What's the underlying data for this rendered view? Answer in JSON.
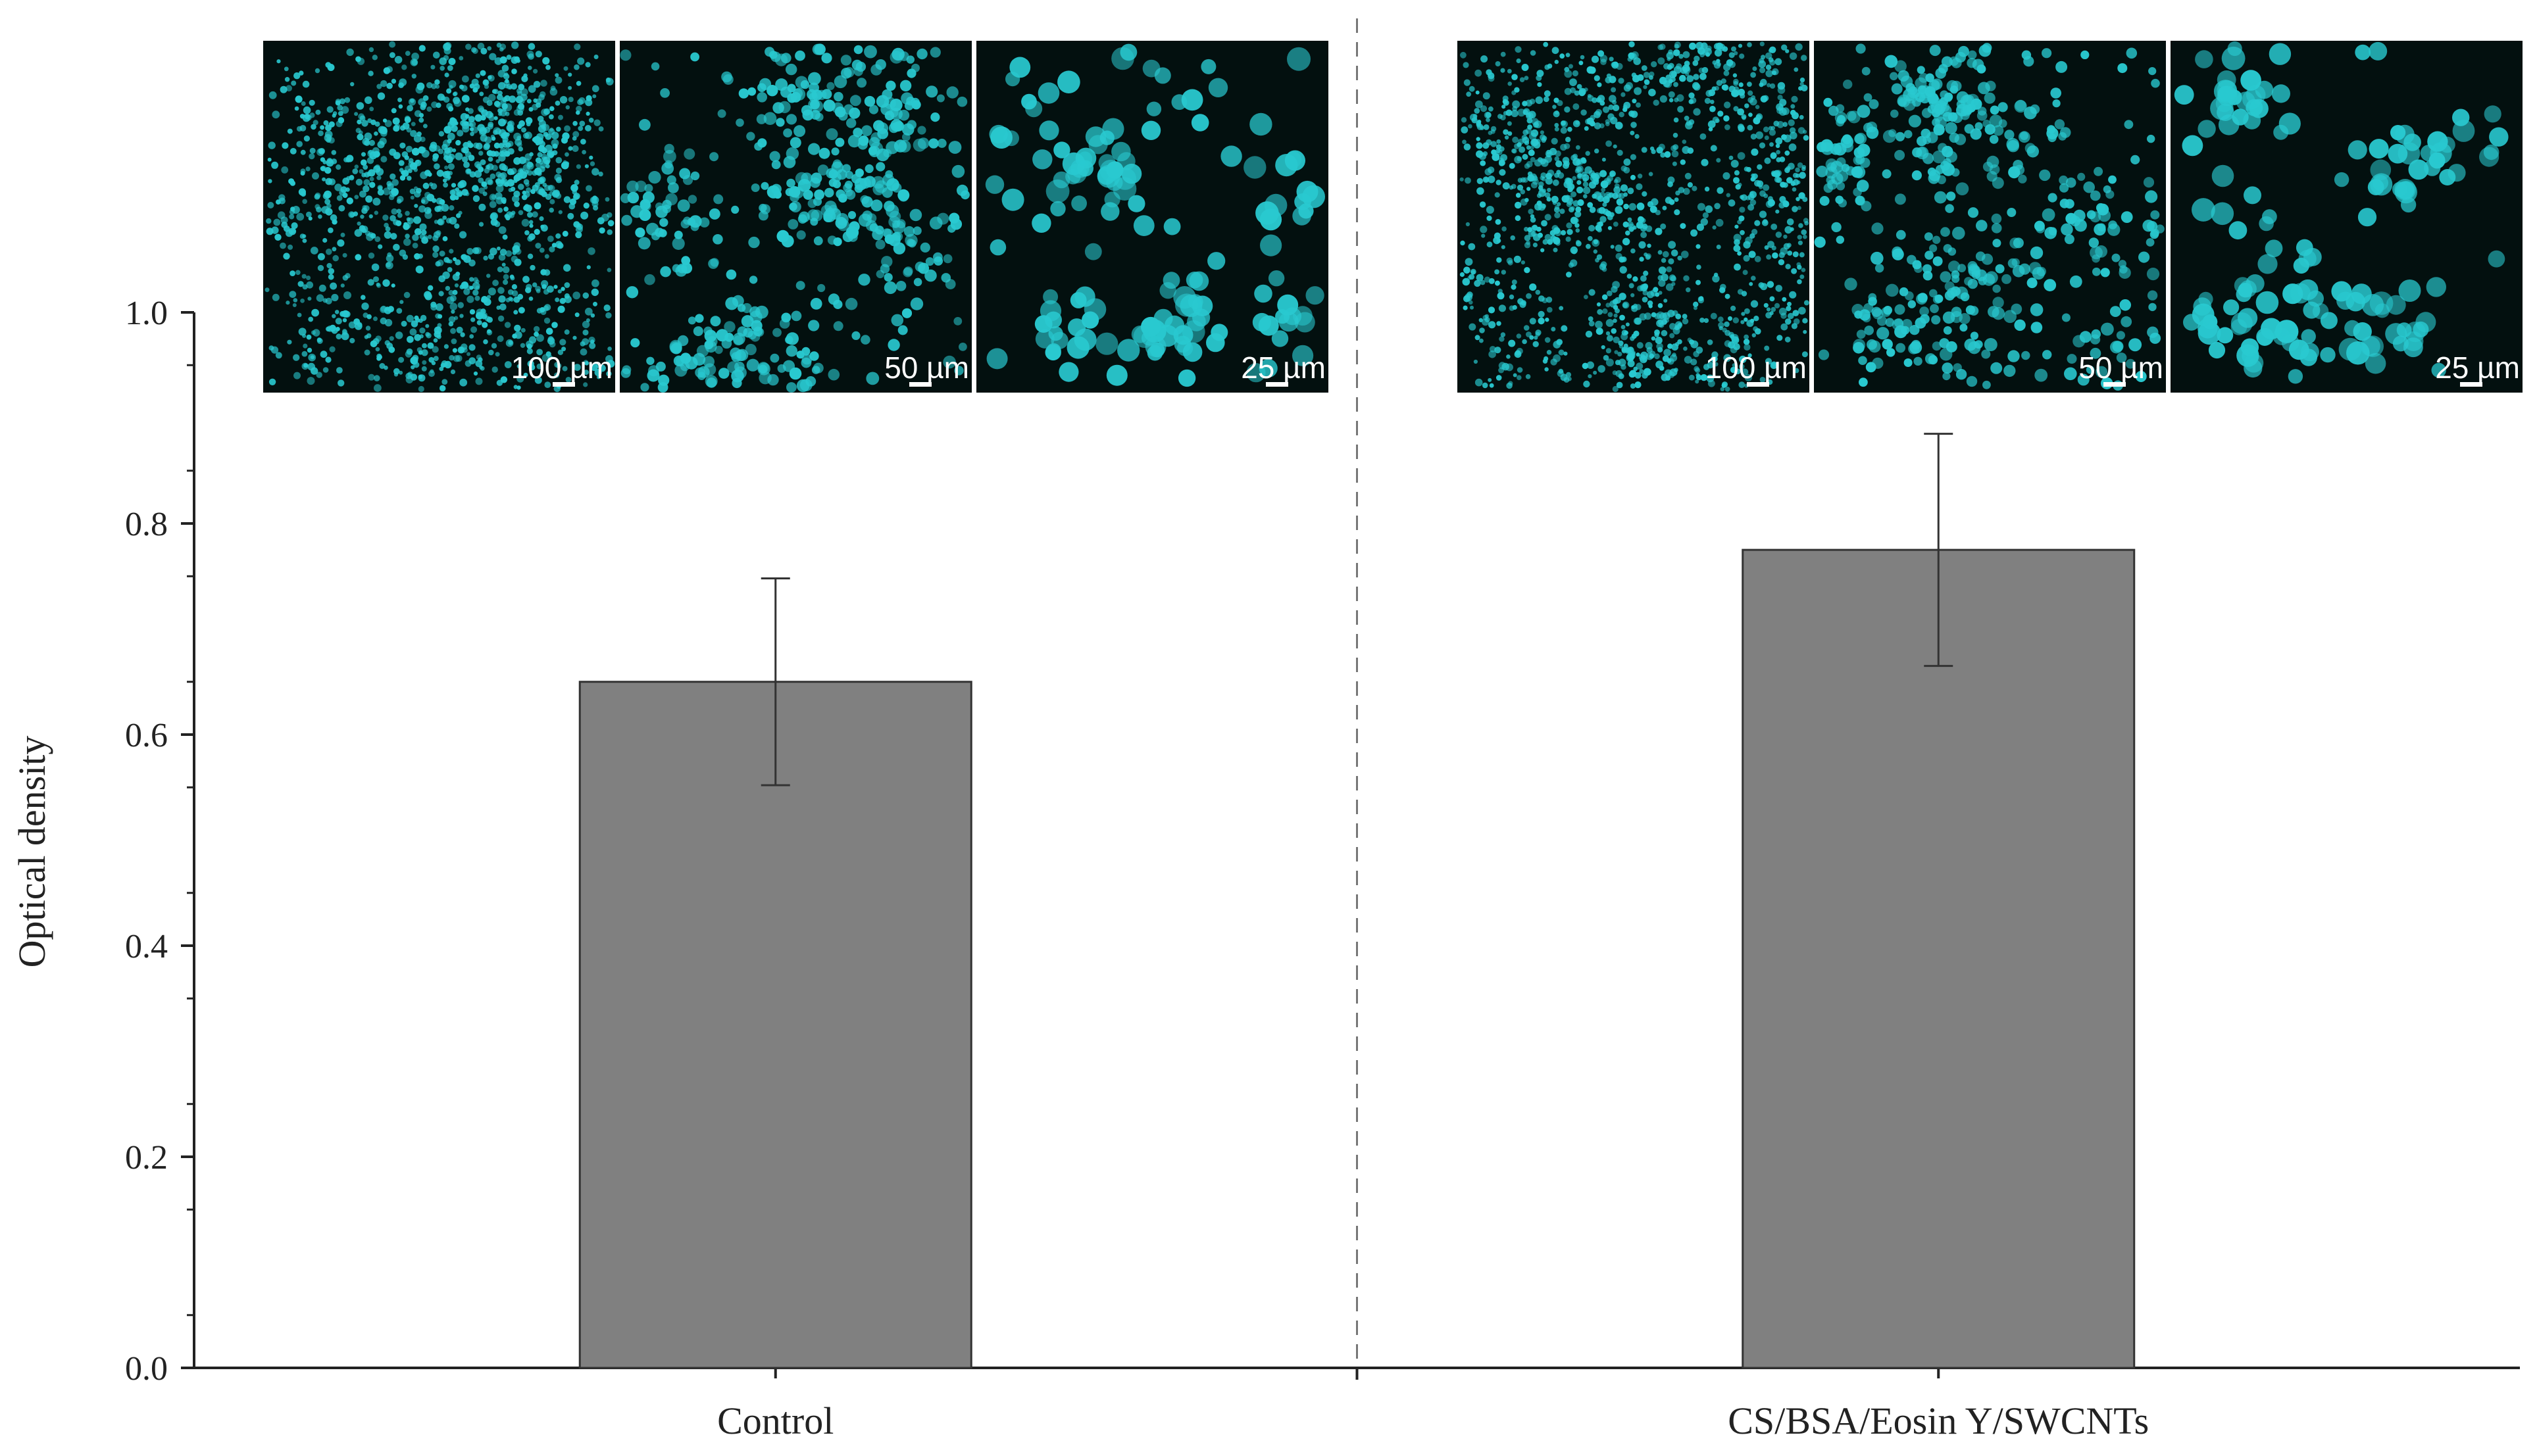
{
  "chart_data": {
    "type": "bar",
    "categories": [
      "Control",
      "CS/BSA/Eosin Y/SWCNTs"
    ],
    "values": [
      0.65,
      0.775
    ],
    "errors": [
      0.098,
      0.11
    ],
    "ylabel": "Optical density",
    "xlabel": "",
    "ylim": [
      0,
      1.0
    ],
    "yticks": [
      "0.0",
      "0.2",
      "0.4",
      "0.6",
      "0.8",
      "1.0"
    ],
    "grid": false,
    "bar_color": "#808080",
    "divider": "dashed vertical line between categories"
  },
  "insets": [
    {
      "group": "Control",
      "panels": [
        {
          "scale_label": "100 µm",
          "density": "high"
        },
        {
          "scale_label": "50 µm",
          "density": "medium"
        },
        {
          "scale_label": "25 µm",
          "density": "low"
        }
      ]
    },
    {
      "group": "CS/BSA/Eosin Y/SWCNTs",
      "panels": [
        {
          "scale_label": "100 µm",
          "density": "high"
        },
        {
          "scale_label": "50 µm",
          "density": "medium"
        },
        {
          "scale_label": "25 µm",
          "density": "low"
        }
      ]
    }
  ],
  "colors": {
    "cell": "#29c9d0",
    "panel_bg": "#03100f",
    "axis": "#222222"
  }
}
